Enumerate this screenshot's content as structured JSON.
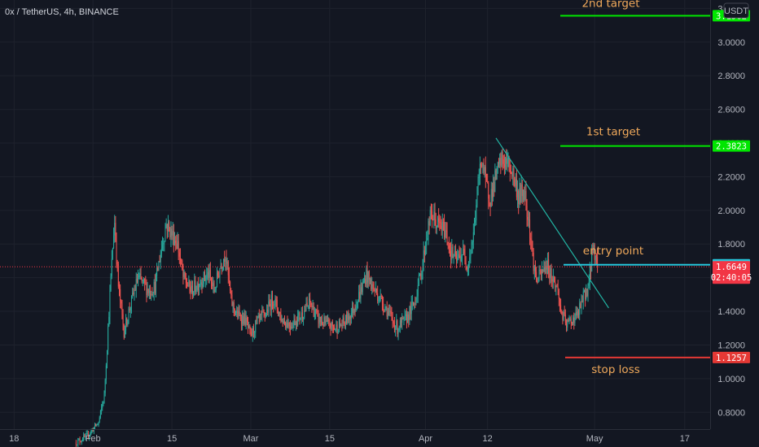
{
  "header": {
    "title": "0x / TetherUS, 4h, BINANCE",
    "currency": "USDT"
  },
  "chart_data": {
    "type": "candlestick",
    "title": "0x / TetherUS, 4h, BINANCE",
    "currency": "USDT",
    "ylim": [
      0.7,
      3.25
    ],
    "yticks": [
      "3.2000",
      "3.0000",
      "2.8000",
      "2.6000",
      "2.4000",
      "2.2000",
      "2.0000",
      "1.8000",
      "1.6000",
      "1.4000",
      "1.2000",
      "1.0000",
      "0.8000"
    ],
    "ytick_values": [
      3.2,
      3.0,
      2.8,
      2.6,
      2.4,
      2.2,
      2.0,
      1.8,
      1.6,
      1.4,
      1.2,
      1.0,
      0.8
    ],
    "xticks": [
      {
        "label": "18",
        "day": 18
      },
      {
        "label": "Feb",
        "day": 32
      },
      {
        "label": "15",
        "day": 46
      },
      {
        "label": "Mar",
        "day": 60
      },
      {
        "label": "15",
        "day": 74
      },
      {
        "label": "Apr",
        "day": 91
      },
      {
        "label": "12",
        "day": 102
      },
      {
        "label": "May",
        "day": 121
      },
      {
        "label": "17",
        "day": 137
      }
    ],
    "xrange_days": [
      15.5,
      141.5
    ],
    "price_path": [
      [
        29,
        0.62
      ],
      [
        31,
        0.66
      ],
      [
        33,
        0.74
      ],
      [
        34,
        0.9
      ],
      [
        35,
        1.5
      ],
      [
        35.8,
        1.95
      ],
      [
        36.5,
        1.55
      ],
      [
        37.5,
        1.28
      ],
      [
        38.5,
        1.42
      ],
      [
        40,
        1.6
      ],
      [
        42,
        1.52
      ],
      [
        43,
        1.55
      ],
      [
        44,
        1.75
      ],
      [
        45,
        1.92
      ],
      [
        46,
        1.86
      ],
      [
        47,
        1.8
      ],
      [
        48,
        1.6
      ],
      [
        49.5,
        1.52
      ],
      [
        51,
        1.58
      ],
      [
        52.5,
        1.62
      ],
      [
        53.5,
        1.52
      ],
      [
        54.5,
        1.66
      ],
      [
        55.5,
        1.75
      ],
      [
        56.5,
        1.46
      ],
      [
        57.5,
        1.38
      ],
      [
        59,
        1.35
      ],
      [
        60,
        1.25
      ],
      [
        61,
        1.33
      ],
      [
        62.5,
        1.38
      ],
      [
        64,
        1.48
      ],
      [
        65.5,
        1.35
      ],
      [
        67,
        1.32
      ],
      [
        69,
        1.38
      ],
      [
        70.5,
        1.45
      ],
      [
        72,
        1.35
      ],
      [
        73.5,
        1.32
      ],
      [
        75,
        1.3
      ],
      [
        76.5,
        1.33
      ],
      [
        78,
        1.4
      ],
      [
        79.5,
        1.52
      ],
      [
        80.5,
        1.62
      ],
      [
        81.5,
        1.55
      ],
      [
        82.5,
        1.5
      ],
      [
        84,
        1.42
      ],
      [
        85,
        1.35
      ],
      [
        86,
        1.3
      ],
      [
        87.5,
        1.35
      ],
      [
        89,
        1.45
      ],
      [
        90.3,
        1.65
      ],
      [
        91.2,
        1.85
      ],
      [
        92,
        1.98
      ],
      [
        93,
        1.92
      ],
      [
        94.5,
        1.88
      ],
      [
        95.5,
        1.75
      ],
      [
        96.5,
        1.7
      ],
      [
        97.5,
        1.75
      ],
      [
        98.5,
        1.68
      ],
      [
        99.5,
        1.85
      ],
      [
        100.3,
        2.15
      ],
      [
        101,
        2.32
      ],
      [
        101.7,
        2.15
      ],
      [
        102.5,
        2.08
      ],
      [
        103.5,
        2.2
      ],
      [
        104.5,
        2.3
      ],
      [
        105.5,
        2.28
      ],
      [
        106.5,
        2.22
      ],
      [
        107.5,
        2.08
      ],
      [
        108.5,
        2.12
      ],
      [
        109.3,
        1.95
      ],
      [
        110,
        1.72
      ],
      [
        110.7,
        1.58
      ],
      [
        111.5,
        1.62
      ],
      [
        112.5,
        1.68
      ],
      [
        113.5,
        1.6
      ],
      [
        114.5,
        1.52
      ],
      [
        115,
        1.4
      ],
      [
        116,
        1.32
      ],
      [
        117,
        1.35
      ],
      [
        118,
        1.38
      ],
      [
        119,
        1.48
      ],
      [
        120,
        1.56
      ],
      [
        120.6,
        1.78
      ],
      [
        121.1,
        1.74
      ],
      [
        121.6,
        1.665
      ]
    ],
    "levels": [
      {
        "label": "2nd target",
        "price": 3.1562,
        "tag": "3.1562",
        "color": "#00e600"
      },
      {
        "label": "1st target",
        "price": 2.3823,
        "tag": "2.3823",
        "color": "#00e600"
      },
      {
        "label": "entry point",
        "price": 1.6766,
        "tag": "1.6766",
        "color": "#26c6da"
      },
      {
        "label": "stop loss",
        "price": 1.1257,
        "tag": "1.1257",
        "color": "#e53935"
      }
    ],
    "last_price": {
      "price": 1.6649,
      "tag": "1.6649",
      "countdown": "02:40:05",
      "color": "#f23645"
    },
    "trendline": {
      "from": [
        103.5,
        2.43
      ],
      "to": [
        123.5,
        1.42
      ],
      "color": "#22b5a4"
    }
  }
}
